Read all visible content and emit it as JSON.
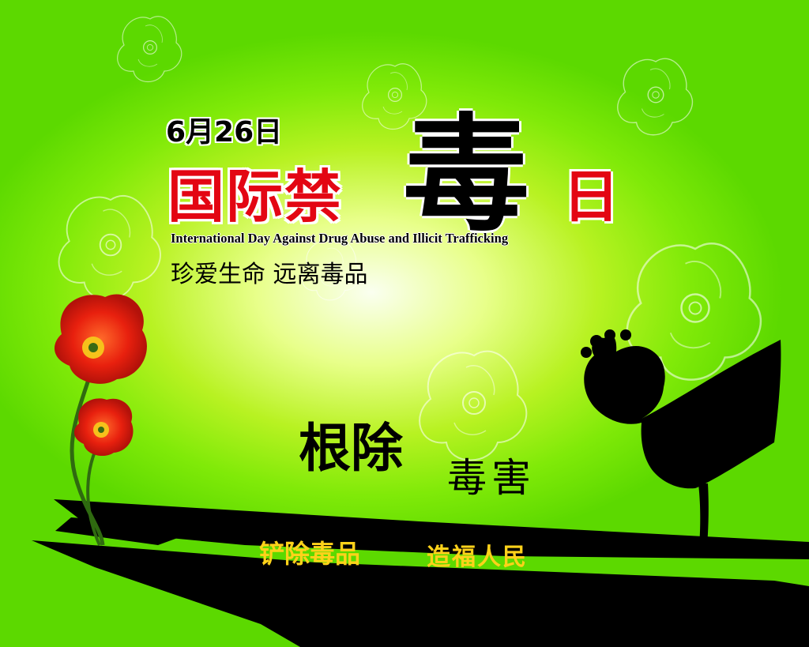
{
  "poster": {
    "date": "6月26日",
    "title_main": "国际禁",
    "title_big_char": "毒",
    "title_day": "日",
    "subtitle_en": "International Day Against Drug Abuse and Illicit Trafficking",
    "slogan_1": "珍爱生命  远离毒品",
    "slogan_strong": "根除",
    "slogan_light": "毒害",
    "slogan_bottom_a": "铲除毒品",
    "slogan_bottom_b": "造福人民"
  },
  "colors": {
    "background_edge": "#5cd900",
    "background_center": "#fafff0",
    "title_red": "#e30613",
    "bottom_text_yellow": "#ffd21a",
    "silhouette": "#000000",
    "poppy_red": "#e8200e"
  },
  "icons": [
    "red-poppy-flower-icon",
    "poppy-seed-pod-silhouette-icon",
    "poppy-outline-pattern-icon"
  ]
}
